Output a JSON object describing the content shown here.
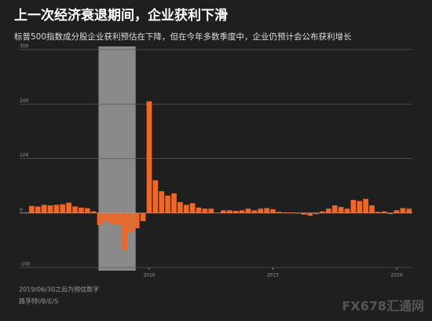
{
  "chart_data": {
    "type": "bar",
    "title": "上一次经济衰退期间，企业获利下滑",
    "subtitle": "标普500指数成分股企业获利预估在下降，但在今年多数季度中，企业仍预计会公布获利增长",
    "notes": [
      "2019/06/30之后为预估数字",
      "路孚特I/B/E/S"
    ],
    "watermark": "FX678汇通网",
    "color": "#f26522",
    "recession": {
      "color": "#8a8a8a",
      "xlim": [
        2007.95,
        2009.45
      ]
    },
    "x": [
      2005.25,
      2005.5,
      2005.75,
      2006,
      2006.25,
      2006.5,
      2006.75,
      2007,
      2007.25,
      2007.5,
      2007.75,
      2008,
      2008.25,
      2008.5,
      2008.75,
      2009,
      2009.25,
      2009.5,
      2009.75,
      2010,
      2010.25,
      2010.5,
      2010.75,
      2011,
      2011.25,
      2011.5,
      2011.75,
      2012,
      2012.25,
      2012.5,
      2012.75,
      2013,
      2013.25,
      2013.5,
      2013.75,
      2014,
      2014.25,
      2014.5,
      2014.75,
      2015,
      2015.25,
      2015.5,
      2015.75,
      2016,
      2016.25,
      2016.5,
      2016.75,
      2017,
      2017.25,
      2017.5,
      2017.75,
      2018,
      2018.25,
      2018.5,
      2018.75,
      2019,
      2019.25,
      2019.5,
      2019.75,
      2020,
      2020.25,
      2020.5
    ],
    "values": [
      13,
      12,
      15,
      14,
      15,
      16,
      19,
      12,
      10,
      9,
      3,
      -22,
      -15,
      -20,
      -22,
      -68,
      -35,
      -28,
      -15,
      205,
      60,
      40,
      32,
      36,
      20,
      15,
      18,
      10,
      8,
      8,
      0.5,
      5,
      5,
      4,
      5,
      8,
      5,
      8,
      9,
      7,
      2,
      1,
      1,
      -1,
      -3,
      -5,
      -2,
      3,
      8,
      14,
      11,
      8,
      24,
      22,
      26,
      14,
      2,
      3,
      -2,
      5,
      9,
      8
    ],
    "xlim": [
      2004.6,
      2021.0
    ],
    "xticks": [
      2010,
      2015,
      2020
    ],
    "ylim": [
      -100,
      300
    ],
    "yticks": [
      -100,
      0,
      100,
      200,
      300
    ],
    "grid": true
  }
}
